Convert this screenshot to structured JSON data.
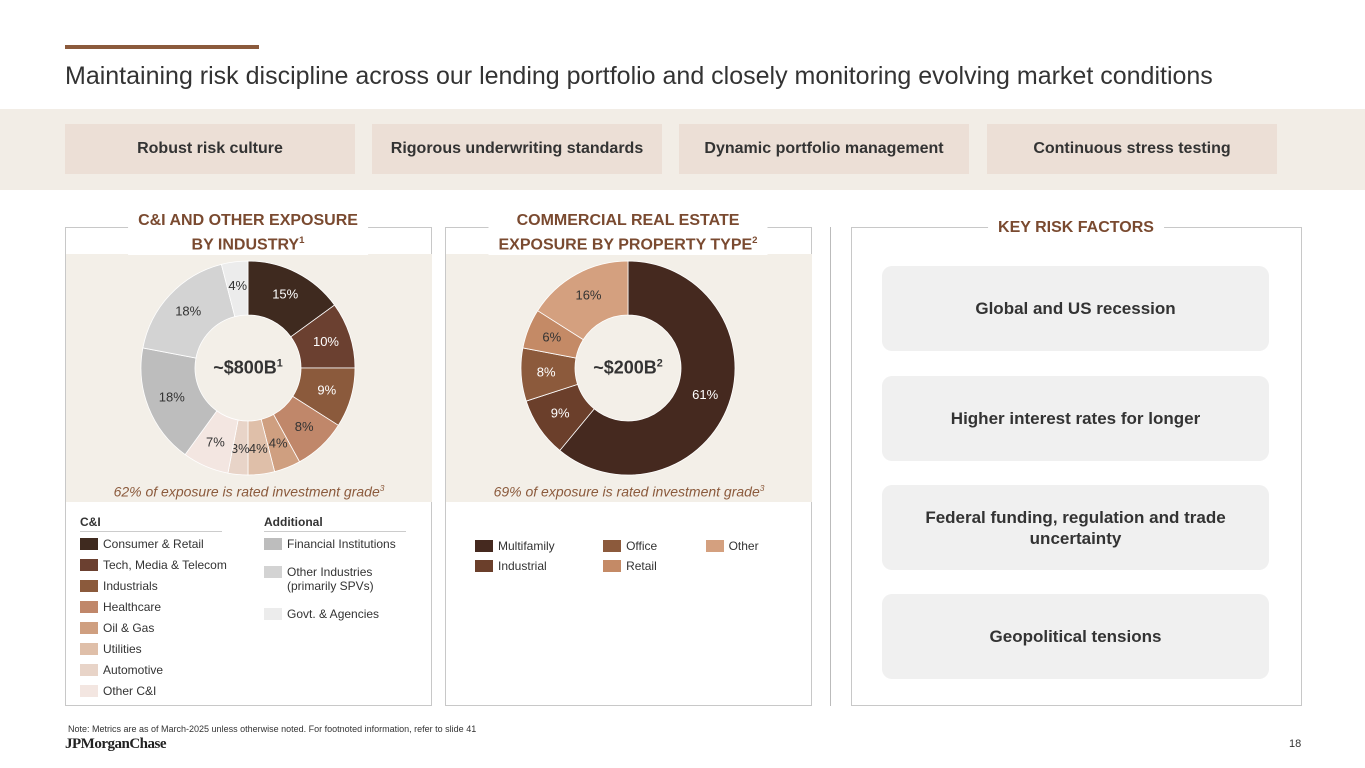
{
  "header": {
    "title": "Maintaining risk discipline across our lending portfolio and closely monitoring evolving market conditions"
  },
  "pillars": [
    "Robust risk culture",
    "Rigorous underwriting standards",
    "Dynamic portfolio management",
    "Continuous stress testing"
  ],
  "chart_data": [
    {
      "type": "donut",
      "title": [
        "C&I AND OTHER EXPOSURE",
        "BY INDUSTRY"
      ],
      "title_note": "1",
      "center_label": "~$800B",
      "center_label_note": "1",
      "caption": "62% of exposure is rated investment grade",
      "caption_note": "3",
      "groups": [
        {
          "name": "C&I",
          "categories": [
            "Consumer & Retail",
            "Tech, Media & Telecom",
            "Industrials",
            "Healthcare",
            "Oil & Gas",
            "Utilities",
            "Automotive",
            "Other C&I"
          ],
          "values": [
            15,
            10,
            9,
            8,
            4,
            4,
            3,
            7
          ],
          "value_labels": [
            "15%",
            "10%",
            "9%",
            "8%",
            "4%",
            "4%",
            "3%",
            "7%"
          ],
          "colors": [
            "#3f2a1f",
            "#6b4030",
            "#8b5a3c",
            "#c0876a",
            "#cf9f80",
            "#dfbfa9",
            "#e8d4c8",
            "#f3e6e1"
          ]
        },
        {
          "name": "Additional",
          "categories": [
            "Financial Institutions",
            "Other Industries (primarily SPVs)",
            "Govt. & Agencies"
          ],
          "values": [
            18,
            18,
            4
          ],
          "value_labels": [
            "18%",
            "18%",
            "4%"
          ],
          "colors": [
            "#bdbdbd",
            "#d3d3d3",
            "#ececec"
          ]
        }
      ]
    },
    {
      "type": "donut",
      "title": [
        "COMMERCIAL REAL ESTATE",
        "EXPOSURE BY PROPERTY TYPE"
      ],
      "title_note": "2",
      "center_label": "~$200B",
      "center_label_note": "2",
      "caption": "69% of exposure is rated investment grade",
      "caption_note": "3",
      "categories": [
        "Multifamily",
        "Industrial",
        "Office",
        "Retail",
        "Other"
      ],
      "values": [
        61,
        9,
        8,
        6,
        16
      ],
      "value_labels": [
        "61%",
        "9%",
        "8%",
        "6%",
        "16%"
      ],
      "colors": [
        "#45291f",
        "#6b3f2b",
        "#8c5a3c",
        "#c48a66",
        "#d4a07f"
      ]
    }
  ],
  "risk": {
    "title": "KEY RISK FACTORS",
    "factors": [
      "Global and US recession",
      "Higher interest rates for longer",
      "Federal funding, regulation and trade uncertainty",
      "Geopolitical tensions"
    ]
  },
  "footer": {
    "note": "Note: Metrics are as of March-2025 unless otherwise noted. For footnoted information, refer to slide 41",
    "logo": "JPMorganChase",
    "page": "18"
  }
}
